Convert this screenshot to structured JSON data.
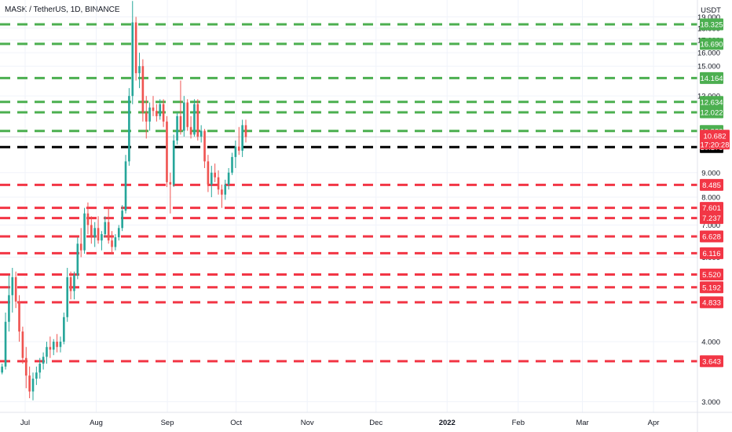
{
  "chart_data": {
    "type": "candlestick",
    "title": "MASK / TetherUS, 1D, BINANCE",
    "currency": "USDT",
    "y_scale": "log",
    "ylim": [
      2.85,
      20.6
    ],
    "y_ticks": [
      "3.000",
      "4.000",
      "6.000",
      "7.000",
      "8.000",
      "9.000",
      "13.000",
      "15.000",
      "16.000",
      "17.000",
      "18.000",
      "19.000"
    ],
    "y_tick_values": [
      3,
      4,
      6,
      7,
      8,
      9,
      13,
      15,
      16,
      17,
      18,
      19
    ],
    "x_ticks": [
      "Jul",
      "Aug",
      "Sep",
      "Oct",
      "Nov",
      "Dec",
      "2022",
      "Feb",
      "Mar",
      "Apr"
    ],
    "x_tick_days": [
      0,
      31,
      62,
      92,
      123,
      153,
      184,
      215,
      243,
      274
    ],
    "x_tick_bold": [
      false,
      false,
      false,
      false,
      false,
      false,
      true,
      false,
      false,
      false
    ],
    "last_price": {
      "value": "10.682",
      "countdown": "17:20:28",
      "color": "#f23645"
    },
    "support_resistance": [
      {
        "value": 18.325,
        "label": "18.325",
        "color": "#4caf50"
      },
      {
        "value": 16.69,
        "label": "16.690",
        "color": "#4caf50"
      },
      {
        "value": 14.164,
        "label": "14.164",
        "color": "#4caf50"
      },
      {
        "value": 12.634,
        "label": "12.634",
        "color": "#4caf50"
      },
      {
        "value": 12.022,
        "label": "12.022",
        "color": "#4caf50"
      },
      {
        "value": 10.989,
        "label": "10.989",
        "color": "#4caf50"
      },
      {
        "value": 10.173,
        "label": "10.173",
        "color": "#000000"
      },
      {
        "value": 8.485,
        "label": "8.485",
        "color": "#f23645"
      },
      {
        "value": 7.601,
        "label": "7.601",
        "color": "#f23645"
      },
      {
        "value": 7.237,
        "label": "7.237",
        "color": "#f23645"
      },
      {
        "value": 6.628,
        "label": "6.628",
        "color": "#f23645"
      },
      {
        "value": 6.116,
        "label": "6.116",
        "color": "#f23645"
      },
      {
        "value": 5.52,
        "label": "5.520",
        "color": "#f23645"
      },
      {
        "value": 5.192,
        "label": "5.192",
        "color": "#f23645"
      },
      {
        "value": 4.833,
        "label": "4.833",
        "color": "#f23645"
      },
      {
        "value": 3.643,
        "label": "3.643",
        "color": "#f23645"
      }
    ],
    "candle_colors": {
      "up": "#26a69a",
      "down": "#ef5350"
    },
    "candles": [
      {
        "o": 3.6,
        "h": 3.8,
        "l": 3.45,
        "c": 3.55
      },
      {
        "o": 3.55,
        "h": 3.7,
        "l": 3.42,
        "c": 3.6
      },
      {
        "o": 3.6,
        "h": 3.65,
        "l": 3.4,
        "c": 3.48
      },
      {
        "o": 3.48,
        "h": 3.7,
        "l": 3.45,
        "c": 3.62
      },
      {
        "o": 3.62,
        "h": 3.75,
        "l": 3.5,
        "c": 3.55
      },
      {
        "o": 3.55,
        "h": 3.62,
        "l": 3.35,
        "c": 3.42
      },
      {
        "o": 3.42,
        "h": 3.6,
        "l": 3.38,
        "c": 3.52
      },
      {
        "o": 3.52,
        "h": 3.58,
        "l": 3.38,
        "c": 3.45
      },
      {
        "o": 3.45,
        "h": 3.55,
        "l": 3.4,
        "c": 3.5
      },
      {
        "o": 3.5,
        "h": 3.55,
        "l": 3.4,
        "c": 3.45
      },
      {
        "o": 3.45,
        "h": 3.52,
        "l": 3.4,
        "c": 3.48
      },
      {
        "o": 3.48,
        "h": 3.55,
        "l": 3.42,
        "c": 3.46
      },
      {
        "o": 3.46,
        "h": 3.52,
        "l": 3.4,
        "c": 3.49
      },
      {
        "o": 3.49,
        "h": 3.55,
        "l": 3.42,
        "c": 3.45
      },
      {
        "o": 3.45,
        "h": 3.6,
        "l": 3.42,
        "c": 3.55
      },
      {
        "o": 3.55,
        "h": 4.6,
        "l": 3.5,
        "c": 4.4
      },
      {
        "o": 4.4,
        "h": 5.5,
        "l": 4.2,
        "c": 5.0
      },
      {
        "o": 5.0,
        "h": 5.7,
        "l": 4.6,
        "c": 5.45
      },
      {
        "o": 5.45,
        "h": 5.6,
        "l": 4.7,
        "c": 4.85
      },
      {
        "o": 4.85,
        "h": 5.0,
        "l": 4.0,
        "c": 4.2
      },
      {
        "o": 4.2,
        "h": 4.3,
        "l": 3.6,
        "c": 3.7
      },
      {
        "o": 3.7,
        "h": 3.9,
        "l": 3.2,
        "c": 3.4
      },
      {
        "o": 3.4,
        "h": 3.55,
        "l": 3.05,
        "c": 3.15
      },
      {
        "o": 3.15,
        "h": 3.45,
        "l": 3.02,
        "c": 3.35
      },
      {
        "o": 3.35,
        "h": 3.55,
        "l": 3.25,
        "c": 3.45
      },
      {
        "o": 3.45,
        "h": 3.7,
        "l": 3.35,
        "c": 3.6
      },
      {
        "o": 3.6,
        "h": 3.8,
        "l": 3.5,
        "c": 3.72
      },
      {
        "o": 3.72,
        "h": 4.0,
        "l": 3.6,
        "c": 3.9
      },
      {
        "o": 3.9,
        "h": 4.1,
        "l": 3.7,
        "c": 3.85
      },
      {
        "o": 3.85,
        "h": 4.05,
        "l": 3.75,
        "c": 4.0
      },
      {
        "o": 4.0,
        "h": 4.15,
        "l": 3.8,
        "c": 3.9
      },
      {
        "o": 3.9,
        "h": 4.1,
        "l": 3.8,
        "c": 4.0
      },
      {
        "o": 4.0,
        "h": 4.6,
        "l": 3.95,
        "c": 4.5
      },
      {
        "o": 4.5,
        "h": 5.7,
        "l": 4.4,
        "c": 5.45
      },
      {
        "o": 5.45,
        "h": 5.6,
        "l": 4.9,
        "c": 5.1
      },
      {
        "o": 5.1,
        "h": 5.6,
        "l": 4.9,
        "c": 5.5
      },
      {
        "o": 5.5,
        "h": 6.6,
        "l": 5.4,
        "c": 6.4
      },
      {
        "o": 6.4,
        "h": 6.9,
        "l": 6.0,
        "c": 6.2
      },
      {
        "o": 6.2,
        "h": 7.6,
        "l": 6.1,
        "c": 7.4
      },
      {
        "o": 7.4,
        "h": 7.8,
        "l": 6.7,
        "c": 7.0
      },
      {
        "o": 7.0,
        "h": 7.3,
        "l": 6.4,
        "c": 6.6
      },
      {
        "o": 6.6,
        "h": 7.1,
        "l": 6.3,
        "c": 6.9
      },
      {
        "o": 6.9,
        "h": 7.3,
        "l": 6.4,
        "c": 6.5
      },
      {
        "o": 6.5,
        "h": 6.8,
        "l": 6.2,
        "c": 6.7
      },
      {
        "o": 6.7,
        "h": 7.3,
        "l": 6.6,
        "c": 7.1
      },
      {
        "o": 7.1,
        "h": 7.6,
        "l": 6.4,
        "c": 6.5
      },
      {
        "o": 6.5,
        "h": 6.8,
        "l": 6.1,
        "c": 6.3
      },
      {
        "o": 6.3,
        "h": 6.7,
        "l": 6.2,
        "c": 6.6
      },
      {
        "o": 6.6,
        "h": 7.0,
        "l": 6.5,
        "c": 6.9
      },
      {
        "o": 6.9,
        "h": 7.7,
        "l": 6.8,
        "c": 7.5
      },
      {
        "o": 7.5,
        "h": 9.8,
        "l": 7.4,
        "c": 9.5
      },
      {
        "o": 9.5,
        "h": 13.5,
        "l": 9.3,
        "c": 13.0
      },
      {
        "o": 13.0,
        "h": 20.5,
        "l": 12.5,
        "c": 18.5
      },
      {
        "o": 18.5,
        "h": 19.0,
        "l": 14.0,
        "c": 14.5
      },
      {
        "o": 14.5,
        "h": 16.0,
        "l": 13.5,
        "c": 15.0
      },
      {
        "o": 15.0,
        "h": 15.5,
        "l": 11.5,
        "c": 12.0
      },
      {
        "o": 12.0,
        "h": 13.0,
        "l": 10.6,
        "c": 11.5
      },
      {
        "o": 11.5,
        "h": 12.6,
        "l": 11.0,
        "c": 12.3
      },
      {
        "o": 12.3,
        "h": 13.0,
        "l": 11.8,
        "c": 12.1
      },
      {
        "o": 12.1,
        "h": 12.5,
        "l": 11.5,
        "c": 11.8
      },
      {
        "o": 11.8,
        "h": 12.8,
        "l": 11.6,
        "c": 12.5
      },
      {
        "o": 12.5,
        "h": 12.8,
        "l": 11.2,
        "c": 11.5
      },
      {
        "o": 11.5,
        "h": 11.8,
        "l": 8.4,
        "c": 8.6
      },
      {
        "o": 8.6,
        "h": 9.0,
        "l": 7.4,
        "c": 8.5
      },
      {
        "o": 8.5,
        "h": 10.8,
        "l": 8.4,
        "c": 10.5
      },
      {
        "o": 10.5,
        "h": 12.0,
        "l": 10.3,
        "c": 11.8
      },
      {
        "o": 11.8,
        "h": 14.0,
        "l": 10.8,
        "c": 11.0
      },
      {
        "o": 11.0,
        "h": 13.0,
        "l": 10.7,
        "c": 12.6
      },
      {
        "o": 12.6,
        "h": 12.8,
        "l": 11.0,
        "c": 11.2
      },
      {
        "o": 11.2,
        "h": 11.8,
        "l": 10.6,
        "c": 10.8
      },
      {
        "o": 10.8,
        "h": 12.8,
        "l": 10.7,
        "c": 12.5
      },
      {
        "o": 12.5,
        "h": 12.8,
        "l": 10.5,
        "c": 10.7
      },
      {
        "o": 10.7,
        "h": 11.3,
        "l": 10.4,
        "c": 11.0
      },
      {
        "o": 11.0,
        "h": 11.1,
        "l": 9.2,
        "c": 9.5
      },
      {
        "o": 9.5,
        "h": 9.8,
        "l": 8.2,
        "c": 8.5
      },
      {
        "o": 8.5,
        "h": 9.3,
        "l": 8.0,
        "c": 9.0
      },
      {
        "o": 9.0,
        "h": 9.4,
        "l": 8.6,
        "c": 8.8
      },
      {
        "o": 8.8,
        "h": 9.1,
        "l": 8.1,
        "c": 8.3
      },
      {
        "o": 8.3,
        "h": 8.5,
        "l": 7.6,
        "c": 8.1
      },
      {
        "o": 8.1,
        "h": 8.7,
        "l": 7.9,
        "c": 8.5
      },
      {
        "o": 8.5,
        "h": 9.2,
        "l": 8.3,
        "c": 9.0
      },
      {
        "o": 9.0,
        "h": 9.9,
        "l": 8.9,
        "c": 9.7
      },
      {
        "o": 9.7,
        "h": 10.5,
        "l": 9.2,
        "c": 10.2
      },
      {
        "o": 10.2,
        "h": 11.2,
        "l": 9.8,
        "c": 10.0
      },
      {
        "o": 10.0,
        "h": 11.6,
        "l": 9.7,
        "c": 11.3
      },
      {
        "o": 11.3,
        "h": 11.6,
        "l": 10.4,
        "c": 10.68
      }
    ]
  }
}
